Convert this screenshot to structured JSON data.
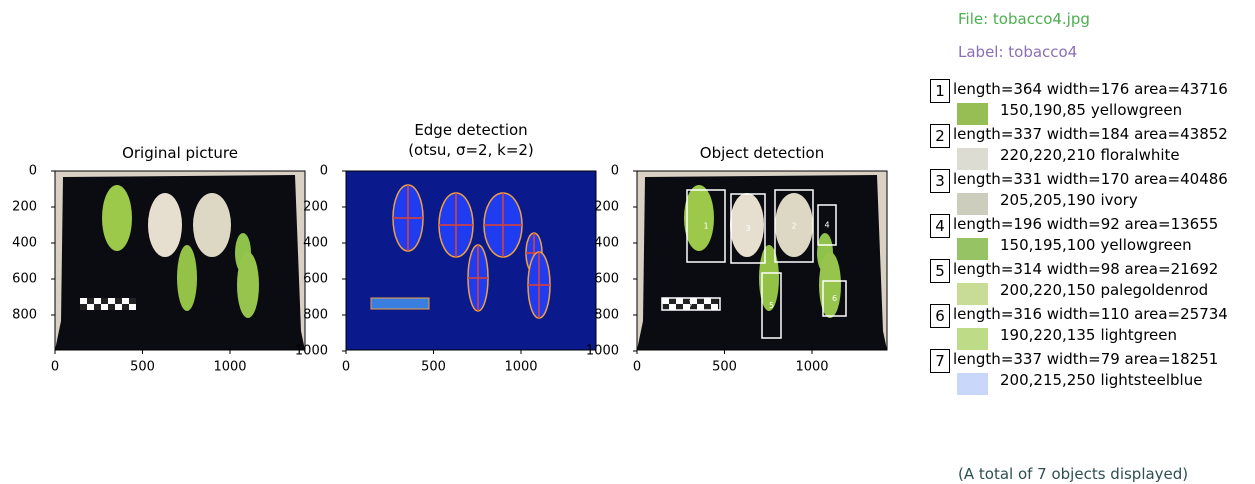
{
  "panels": [
    {
      "title": "Original picture",
      "xticks": [
        "0",
        "500",
        "1000"
      ],
      "yticks": [
        "0",
        "200",
        "400",
        "600",
        "800"
      ]
    },
    {
      "title": "Edge detection",
      "subtitle": "(otsu,  σ=2,  k=2)",
      "xticks": [
        "0",
        "500",
        "1000"
      ],
      "yticks": [
        "0",
        "200",
        "400",
        "600",
        "800",
        "1000"
      ]
    },
    {
      "title": "Object detection",
      "xticks": [
        "0",
        "500",
        "1000"
      ],
      "yticks": [
        "0",
        "200",
        "400",
        "600",
        "800",
        "1000"
      ]
    }
  ],
  "file": "File: tobacco4.jpg",
  "label": "Label: tobacco4",
  "objects": [
    {
      "id": "1",
      "measures": "length=364 width=176 area=43716",
      "rgb": "150,190,85",
      "color_name": "yellowgreen"
    },
    {
      "id": "2",
      "measures": "length=337 width=184 area=43852",
      "rgb": "220,220,210",
      "color_name": "floralwhite"
    },
    {
      "id": "3",
      "measures": "length=331 width=170 area=40486",
      "rgb": "205,205,190",
      "color_name": "ivory"
    },
    {
      "id": "4",
      "measures": "length=196 width=92 area=13655",
      "rgb": "150,195,100",
      "color_name": "yellowgreen"
    },
    {
      "id": "5",
      "measures": "length=314 width=98 area=21692",
      "rgb": "200,220,150",
      "color_name": "palegoldenrod"
    },
    {
      "id": "6",
      "measures": "length=316 width=110 area=25734",
      "rgb": "190,220,135",
      "color_name": "lightgreen"
    },
    {
      "id": "7",
      "measures": "length=337 width=79 area=18251",
      "rgb": "200,215,250",
      "color_name": "lightsteelblue"
    }
  ],
  "footer": "(A total of 7 objects displayed)"
}
